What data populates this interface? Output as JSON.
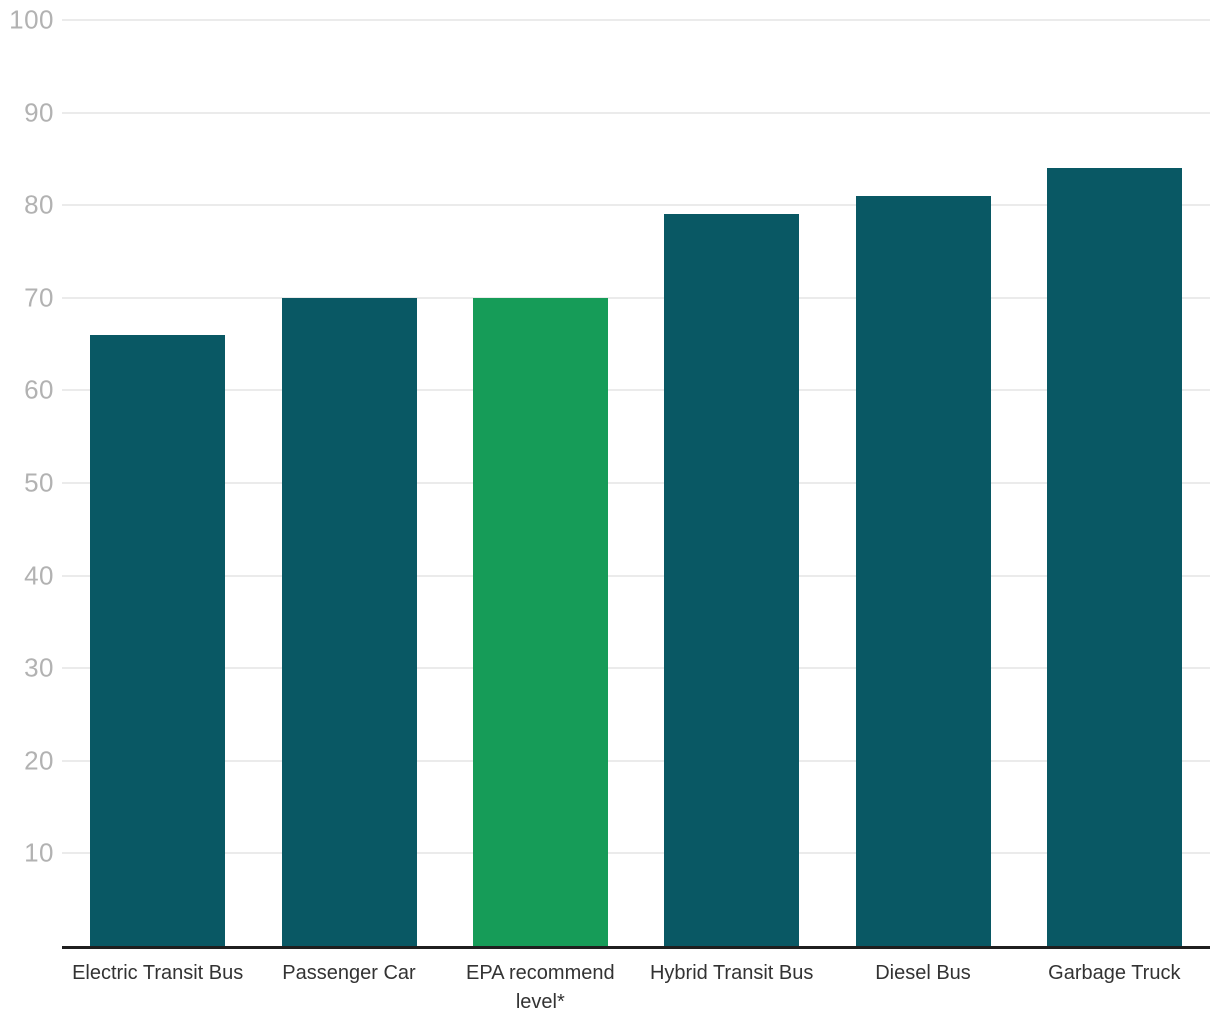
{
  "chart_data": {
    "type": "bar",
    "title": "",
    "xlabel": "",
    "ylabel": "",
    "categories": [
      "Electric Transit Bus",
      "Passenger Car",
      "EPA recommend level*",
      "Hybrid Transit Bus",
      "Diesel Bus",
      "Garbage Truck"
    ],
    "values": [
      66,
      70,
      70,
      79,
      81,
      84
    ],
    "highlight_index": 2,
    "bar_colors": [
      "#095864",
      "#095864",
      "#169c58",
      "#095864",
      "#095864",
      "#095864"
    ],
    "ylim": [
      0,
      100
    ],
    "yticks": [
      10,
      20,
      30,
      40,
      50,
      60,
      70,
      80,
      90,
      100
    ],
    "grid": true,
    "legend": "none",
    "colors": {
      "bar_default": "#095864",
      "bar_highlight": "#169c58",
      "gridline": "#ebebeb",
      "axis_line": "#1f1f1f",
      "ytick_label": "#b2b2b2",
      "xtick_label": "#333333",
      "background": "#ffffff"
    }
  }
}
